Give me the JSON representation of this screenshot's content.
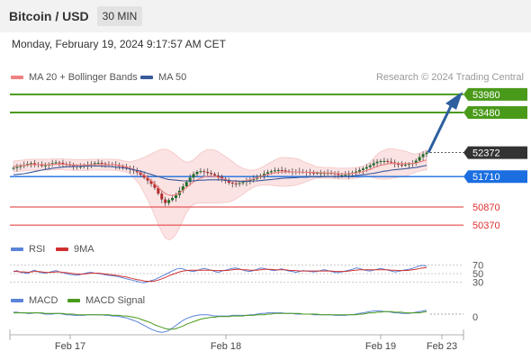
{
  "header": {
    "title": "Bitcoin / USD",
    "timeframe_button": "30 MIN",
    "datetime": "Monday, February 19, 2024 9:17:57 AM CET"
  },
  "legend": {
    "ma20": "MA 20 + Bollinger Bands",
    "ma50": "MA 50",
    "credit": "Research © 2024 Trading Central",
    "rsi": "RSI",
    "rsi_ma": "9MA",
    "macd": "MACD",
    "macd_signal": "MACD Signal"
  },
  "colors": {
    "ma20": "#f08080",
    "ma50": "#3a5a9c",
    "resistance": "#4a9a1a",
    "support": "#1a6ee0",
    "target": "#e23030",
    "candle_up": "#1e6e2a",
    "candle_down": "#b02a2a",
    "arrow": "#2d5f9e",
    "rsi": "#5b83d8",
    "rsi_ma": "#d03030",
    "macd": "#5b83d8",
    "macd_signal": "#4a9a1a"
  },
  "chart_data": [
    {
      "type": "candlestick",
      "x_ticks": [
        "Feb 17",
        "Feb 18",
        "Feb 19",
        "Feb 23"
      ],
      "y_range": [
        50000,
        54300
      ],
      "levels": [
        {
          "label": "53980",
          "value": 53980,
          "kind": "resistance"
        },
        {
          "label": "53480",
          "value": 53480,
          "kind": "resistance"
        },
        {
          "label": "52372",
          "value": 52372,
          "kind": "last"
        },
        {
          "label": "51710",
          "value": 51710,
          "kind": "pivot"
        },
        {
          "label": "50870",
          "value": 50870,
          "kind": "support"
        },
        {
          "label": "50370",
          "value": 50370,
          "kind": "support"
        }
      ],
      "close": [
        51950,
        51980,
        52000,
        52030,
        52060,
        52080,
        52050,
        52030,
        52010,
        52020,
        52050,
        52080,
        52100,
        52090,
        52060,
        52040,
        52020,
        52000,
        51990,
        51990,
        52010,
        52030,
        52060,
        52080,
        52090,
        52070,
        52050,
        52050,
        52040,
        52020,
        52000,
        51970,
        51940,
        51910,
        51880,
        51830,
        51760,
        51680,
        51600,
        51510,
        51400,
        51240,
        51080,
        50980,
        51060,
        51120,
        51200,
        51320,
        51440,
        51560,
        51680,
        51780,
        51840,
        51860,
        51840,
        51810,
        51780,
        51740,
        51700,
        51650,
        51590,
        51540,
        51520,
        51510,
        51530,
        51560,
        51590,
        51620,
        51650,
        51690,
        51740,
        51790,
        51830,
        51860,
        51880,
        51890,
        51880,
        51860,
        51850,
        51850,
        51850,
        51840,
        51840,
        51830,
        51820,
        51810,
        51810,
        51810,
        51810,
        51810,
        51810,
        51780,
        51750,
        51750,
        51760,
        51790,
        51820,
        51850,
        51890,
        51930,
        51970,
        52020,
        52080,
        52120,
        52140,
        52140,
        52120,
        52100,
        52060,
        52040,
        52030,
        52040,
        52060,
        52080,
        52150,
        52250,
        52330,
        52372
      ],
      "ma20": [
        51990,
        52000,
        52010,
        52020,
        52030,
        52040,
        52040,
        52040,
        52040,
        52040,
        52040,
        52050,
        52050,
        52050,
        52050,
        52040,
        52040,
        52030,
        52030,
        52030,
        52030,
        52030,
        52040,
        52040,
        52040,
        52040,
        52040,
        52040,
        52040,
        52030,
        52020,
        52000,
        51980,
        51950,
        51910,
        51870,
        51820,
        51750,
        51680,
        51600,
        51510,
        51410,
        51320,
        51240,
        51200,
        51190,
        51210,
        51260,
        51330,
        51410,
        51490,
        51560,
        51620,
        51670,
        51700,
        51720,
        51720,
        51710,
        51690,
        51660,
        51630,
        51600,
        51580,
        51570,
        51570,
        51580,
        51600,
        51620,
        51650,
        51680,
        51710,
        51740,
        51770,
        51790,
        51810,
        51830,
        51840,
        51840,
        51840,
        51840,
        51840,
        51840,
        51830,
        51830,
        51830,
        51830,
        51820,
        51820,
        51810,
        51810,
        51810,
        51800,
        51790,
        51790,
        51790,
        51790,
        51800,
        51810,
        51830,
        51850,
        51880,
        51910,
        51950,
        51990,
        52020,
        52040,
        52060,
        52070,
        52070,
        52070,
        52070,
        52070,
        52070,
        52070,
        52080,
        52110,
        52140,
        52170
      ],
      "ma50": [
        51760,
        51770,
        51780,
        51790,
        51810,
        51830,
        51850,
        51870,
        51890,
        51910,
        51920,
        51940,
        51950,
        51960,
        51970,
        51980,
        51980,
        51990,
        51990,
        51990,
        52000,
        52000,
        52000,
        52000,
        52000,
        52000,
        51990,
        51990,
        51980,
        51970,
        51960,
        51950,
        51940,
        51920,
        51900,
        51880,
        51860,
        51830,
        51800,
        51770,
        51740,
        51710,
        51680,
        51650,
        51630,
        51620,
        51610,
        51600,
        51590,
        51590,
        51590,
        51590,
        51600,
        51610,
        51610,
        51620,
        51620,
        51620,
        51620,
        51620,
        51610,
        51600,
        51590,
        51590,
        51580,
        51580,
        51580,
        51580,
        51590,
        51590,
        51600,
        51610,
        51620,
        51630,
        51640,
        51650,
        51660,
        51670,
        51670,
        51680,
        51680,
        51690,
        51690,
        51690,
        51700,
        51700,
        51700,
        51700,
        51710,
        51710,
        51710,
        51710,
        51710,
        51710,
        51720,
        51720,
        51730,
        51740,
        51750,
        51760,
        51770,
        51790,
        51800,
        51820,
        51840,
        51860,
        51870,
        51890,
        51900,
        51910,
        51920,
        51930,
        51940,
        51950,
        51960,
        51980,
        52000,
        52020
      ],
      "projection": {
        "from": 52372,
        "to": 53980
      }
    },
    {
      "type": "line",
      "name_ref": "RSI",
      "y_ticks": [
        70,
        50,
        30
      ],
      "y_range": [
        0,
        100
      ],
      "rsi": [
        55,
        57,
        53,
        52,
        50,
        55,
        58,
        54,
        52,
        51,
        53,
        55,
        57,
        54,
        52,
        50,
        48,
        47,
        46,
        48,
        50,
        52,
        53,
        51,
        50,
        49,
        47,
        46,
        45,
        44,
        42,
        40,
        38,
        36,
        34,
        32,
        30,
        29,
        31,
        34,
        36,
        40,
        44,
        48,
        52,
        56,
        60,
        62,
        61,
        58,
        56,
        55,
        57,
        60,
        62,
        60,
        58,
        55,
        53,
        56,
        58,
        60,
        62,
        63,
        61,
        58,
        56,
        55,
        57,
        60,
        63,
        62,
        60,
        58,
        57,
        59,
        61,
        58,
        56,
        55,
        53,
        55,
        57,
        56,
        55,
        54,
        55,
        57,
        59,
        57,
        55,
        53,
        52,
        54,
        56,
        58,
        60,
        63,
        62,
        59,
        57,
        56,
        58,
        60,
        62,
        60,
        58,
        56,
        54,
        55,
        57,
        59,
        60,
        62,
        65,
        68,
        69,
        67
      ],
      "ma9": [
        55,
        55,
        54,
        54,
        53,
        54,
        55,
        55,
        54,
        53,
        53,
        53,
        54,
        54,
        53,
        52,
        51,
        50,
        49,
        49,
        49,
        50,
        51,
        51,
        51,
        50,
        49,
        48,
        47,
        46,
        45,
        43,
        42,
        40,
        38,
        36,
        35,
        33,
        32,
        32,
        33,
        35,
        38,
        41,
        45,
        48,
        51,
        54,
        56,
        57,
        58,
        58,
        58,
        58,
        58,
        58,
        58,
        57,
        57,
        57,
        57,
        58,
        59,
        60,
        60,
        59,
        59,
        58,
        58,
        58,
        59,
        60,
        60,
        60,
        59,
        59,
        59,
        59,
        58,
        57,
        57,
        56,
        56,
        56,
        56,
        56,
        56,
        56,
        56,
        56,
        56,
        55,
        55,
        55,
        55,
        56,
        57,
        58,
        59,
        59,
        59,
        59,
        59,
        59,
        59,
        59,
        59,
        58,
        58,
        57,
        57,
        57,
        58,
        59,
        60,
        62,
        63,
        64
      ]
    },
    {
      "type": "line",
      "name_ref": "MACD",
      "y_ticks": [
        0
      ],
      "y_range": [
        -4,
        2
      ],
      "macd": [
        0.3,
        0.3,
        0.2,
        0.2,
        0.1,
        0.1,
        0.2,
        0.2,
        0.1,
        0.0,
        0.0,
        0.0,
        0.1,
        0.1,
        0.0,
        -0.1,
        -0.1,
        -0.2,
        -0.2,
        -0.2,
        -0.2,
        -0.1,
        -0.1,
        -0.1,
        -0.1,
        -0.1,
        -0.2,
        -0.2,
        -0.3,
        -0.3,
        -0.4,
        -0.5,
        -0.6,
        -0.8,
        -1.0,
        -1.2,
        -1.5,
        -1.8,
        -2.1,
        -2.4,
        -2.6,
        -2.8,
        -2.9,
        -2.8,
        -2.6,
        -2.2,
        -1.8,
        -1.4,
        -1.0,
        -0.7,
        -0.5,
        -0.3,
        -0.2,
        -0.1,
        -0.1,
        -0.1,
        -0.2,
        -0.3,
        -0.3,
        -0.3,
        -0.3,
        -0.3,
        -0.2,
        -0.2,
        -0.2,
        -0.2,
        -0.2,
        -0.1,
        -0.1,
        0.0,
        0.1,
        0.1,
        0.2,
        0.2,
        0.2,
        0.2,
        0.2,
        0.1,
        0.1,
        0.1,
        0.0,
        0.0,
        0.0,
        0.0,
        0.0,
        -0.1,
        -0.1,
        -0.1,
        -0.1,
        -0.1,
        -0.1,
        -0.2,
        -0.2,
        -0.2,
        -0.2,
        -0.1,
        -0.1,
        0.0,
        0.1,
        0.2,
        0.3,
        0.4,
        0.5,
        0.5,
        0.5,
        0.4,
        0.4,
        0.3,
        0.2,
        0.2,
        0.1,
        0.1,
        0.1,
        0.2,
        0.3,
        0.4,
        0.5,
        0.6
      ],
      "signal": [
        0.2,
        0.2,
        0.2,
        0.2,
        0.2,
        0.2,
        0.2,
        0.2,
        0.2,
        0.1,
        0.1,
        0.1,
        0.1,
        0.1,
        0.1,
        0.0,
        0.0,
        0.0,
        -0.1,
        -0.1,
        -0.1,
        -0.1,
        -0.1,
        -0.1,
        -0.1,
        -0.1,
        -0.1,
        -0.1,
        -0.2,
        -0.2,
        -0.2,
        -0.3,
        -0.3,
        -0.4,
        -0.5,
        -0.6,
        -0.8,
        -1.0,
        -1.2,
        -1.4,
        -1.7,
        -1.9,
        -2.1,
        -2.3,
        -2.4,
        -2.4,
        -2.3,
        -2.1,
        -1.9,
        -1.6,
        -1.4,
        -1.2,
        -1.0,
        -0.8,
        -0.7,
        -0.6,
        -0.5,
        -0.5,
        -0.4,
        -0.4,
        -0.4,
        -0.4,
        -0.3,
        -0.3,
        -0.3,
        -0.3,
        -0.2,
        -0.2,
        -0.2,
        -0.1,
        -0.1,
        -0.1,
        0.0,
        0.0,
        0.1,
        0.1,
        0.1,
        0.1,
        0.1,
        0.1,
        0.1,
        0.1,
        0.0,
        0.0,
        0.0,
        0.0,
        0.0,
        -0.1,
        -0.1,
        -0.1,
        -0.1,
        -0.1,
        -0.1,
        -0.1,
        -0.1,
        -0.1,
        -0.1,
        -0.1,
        0.0,
        0.0,
        0.1,
        0.2,
        0.2,
        0.3,
        0.3,
        0.4,
        0.4,
        0.4,
        0.3,
        0.3,
        0.3,
        0.2,
        0.2,
        0.2,
        0.2,
        0.2,
        0.3,
        0.4
      ]
    }
  ]
}
